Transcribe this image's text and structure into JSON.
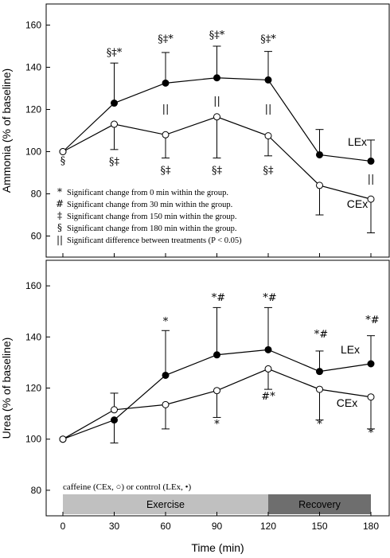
{
  "chart_data": [
    {
      "type": "line",
      "ylabel": "Ammonia (% of baseline)",
      "xlabel": "Time (min)",
      "x": [
        0,
        30,
        60,
        90,
        120,
        150,
        180
      ],
      "ylim": [
        50,
        170
      ],
      "yticks": [
        60,
        80,
        100,
        120,
        140,
        160
      ],
      "series": [
        {
          "name": "LEx",
          "marker": "filled",
          "values": [
            100,
            123,
            132.5,
            135,
            134,
            98.5,
            95.5
          ],
          "err_up": [
            0,
            19,
            14.5,
            15,
            13.5,
            12,
            10
          ],
          "err_down": [
            0,
            0,
            0,
            0,
            0,
            0,
            0
          ]
        },
        {
          "name": "CEx",
          "marker": "open",
          "values": [
            100,
            113,
            108,
            116.5,
            107.5,
            84,
            77.5
          ],
          "err_up": [
            0,
            0,
            0,
            0,
            0,
            0,
            0
          ],
          "err_down": [
            0,
            12,
            11,
            19.5,
            9.5,
            14,
            16
          ]
        }
      ],
      "annotations_above": [
        "",
        "§‡*",
        "§‡*",
        "§‡*",
        "§‡*",
        "",
        ""
      ],
      "annotations_between": [
        "",
        "",
        "||",
        "||",
        "||",
        "",
        "||"
      ],
      "annotations_below": [
        "§",
        "§‡",
        "§‡",
        "§‡",
        "§‡",
        "",
        ""
      ],
      "legend": [
        {
          "symbol": "*",
          "text": "Significant change from 0 min within the group."
        },
        {
          "symbol": "#",
          "text": "Significant change from 30 min within the group."
        },
        {
          "symbol": "‡",
          "text": "Significant change from 150 min within the group."
        },
        {
          "symbol": "§",
          "text": "Significant change from 180 min within the group."
        },
        {
          "symbol": "||",
          "text": "Significant difference between treatments (P < 0.05)"
        }
      ]
    },
    {
      "type": "line",
      "ylabel": "Urea (% of baseline)",
      "xlabel": "Time (min)",
      "x": [
        0,
        30,
        60,
        90,
        120,
        150,
        180
      ],
      "ylim": [
        70,
        170
      ],
      "yticks": [
        80,
        100,
        120,
        140,
        160
      ],
      "xticks": [
        "0",
        "30",
        "60",
        "90",
        "120",
        "150",
        "180"
      ],
      "series": [
        {
          "name": "LEx",
          "marker": "filled",
          "values": [
            100,
            107.5,
            125,
            133,
            135,
            126.5,
            129.5
          ],
          "err_up": [
            0,
            0,
            17.5,
            18.5,
            16.5,
            8,
            11
          ],
          "err_down": [
            0,
            9,
            0,
            0,
            0,
            0,
            0
          ]
        },
        {
          "name": "CEx",
          "marker": "open",
          "values": [
            100,
            111.5,
            113.5,
            119,
            127.5,
            119.5,
            116.5
          ],
          "err_up": [
            0,
            6.5,
            0,
            0,
            0,
            0,
            0
          ],
          "err_down": [
            0,
            0,
            9.5,
            10.5,
            8,
            12,
            12.5
          ]
        }
      ],
      "annotations_above": [
        "",
        "",
        "*",
        "*#",
        "*#",
        "*#",
        "*#"
      ],
      "annotations_below": [
        "",
        "",
        "",
        "*",
        "#*",
        "*",
        "*"
      ],
      "condition_note": "caffeine (CEx, ○) or control (LEx, •)",
      "phases": [
        {
          "label": "Exercise",
          "from": 0,
          "to": 120,
          "color": "#c0c0c0"
        },
        {
          "label": "Recovery",
          "from": 120,
          "to": 180,
          "color": "#6e6e6e"
        }
      ]
    }
  ]
}
